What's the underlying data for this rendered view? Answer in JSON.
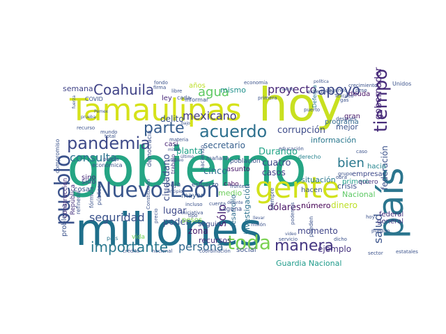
{
  "wordcloud": {
    "words": [
      {
        "text": "gobierno",
        "color": "#25a584"
      },
      {
        "text": "millones",
        "color": "#1f6f8b"
      },
      {
        "text": "hoy",
        "color": "#c8e020"
      },
      {
        "text": "país",
        "color": "#2b758e"
      },
      {
        "text": "Tamaulipas",
        "color": "#d5e21a"
      },
      {
        "text": "gente",
        "color": "#d2e21b"
      },
      {
        "text": "Nuevo León",
        "color": "#39568c"
      },
      {
        "text": "pueblo",
        "color": "#3b528b"
      },
      {
        "text": "pandemia",
        "color": "#3e4a89"
      },
      {
        "text": "Coahuila",
        "color": "#404387"
      },
      {
        "text": "acuerdo",
        "color": "#2d708e"
      },
      {
        "text": "parte",
        "color": "#365d8d"
      },
      {
        "text": "tiempo",
        "color": "#472c7a"
      },
      {
        "text": "toda",
        "color": "#7ad151"
      },
      {
        "text": "manera",
        "color": "#453781"
      },
      {
        "text": "importante",
        "color": "#2a788e"
      },
      {
        "text": "agua",
        "color": "#5ec962"
      },
      {
        "text": "apoyo",
        "color": "#3e4989"
      },
      {
        "text": "proyecto",
        "color": "#482677"
      },
      {
        "text": "seguridad",
        "color": "#3b528b"
      },
      {
        "text": "mexicano",
        "color": "#443b84"
      },
      {
        "text": "consulta",
        "color": "#2c728e"
      },
      {
        "text": "persona",
        "color": "#31688e"
      },
      {
        "text": "bien",
        "color": "#2a788e"
      },
      {
        "text": "salud",
        "color": "#3a538b"
      },
      {
        "text": "gobernador",
        "color": "#482979"
      },
      {
        "text": "sólo",
        "color": "#482173"
      },
      {
        "text": "Durango",
        "color": "#20a386"
      },
      {
        "text": "corrupción",
        "color": "#3e4c8a"
      },
      {
        "text": "federación",
        "color": "#3b528b"
      },
      {
        "text": "dólares",
        "color": "#471365"
      },
      {
        "text": "ejemplo",
        "color": "#46327e"
      },
      {
        "text": "Guardia Nacional",
        "color": "#1e9b8a"
      },
      {
        "text": "secretario",
        "color": "#355f8d"
      },
      {
        "text": "cinco",
        "color": "#2e6e8e"
      },
      {
        "text": "cuatro",
        "color": "#3e4a89"
      },
      {
        "text": "casos",
        "color": "#424086"
      },
      {
        "text": "delito",
        "color": "#3b528b"
      },
      {
        "text": "semana",
        "color": "#414487"
      },
      {
        "text": "mismo",
        "color": "#21918c"
      },
      {
        "text": "mejor",
        "color": "#3b528b"
      },
      {
        "text": "planta",
        "color": "#1fa187"
      },
      {
        "text": "ciudadano",
        "color": "#3d4e8a"
      },
      {
        "text": "lugar",
        "color": "#3e4989"
      },
      {
        "text": "poder",
        "color": "#3b528b"
      },
      {
        "text": "número",
        "color": "#440154"
      },
      {
        "text": "dinero",
        "color": "#bddf26"
      },
      {
        "text": "momento",
        "color": "#404588"
      },
      {
        "text": "información",
        "color": "#2a788e"
      },
      {
        "text": "investigación",
        "color": "#2c728e"
      },
      {
        "text": "zona",
        "color": "#481a6c"
      },
      {
        "text": "recursos",
        "color": "#472f7d"
      },
      {
        "text": "Nacional",
        "color": "#5cc863"
      },
      {
        "text": "crisis",
        "color": "#3b528b"
      },
      {
        "text": "primero",
        "color": "#1f9e89"
      },
      {
        "text": "medio",
        "color": "#6ccd5a"
      },
      {
        "text": "situación",
        "color": "#2a788e"
      },
      {
        "text": "hacen",
        "color": "#3b528b"
      },
      {
        "text": "hacia",
        "color": "#25858e"
      },
      {
        "text": "gran",
        "color": "#48186a"
      },
      {
        "text": "general",
        "color": "#443983"
      },
      {
        "text": "federal",
        "color": "#46327e"
      },
      {
        "text": "empresa",
        "color": "#3e4a89"
      },
      {
        "text": "deuda",
        "color": "#481467"
      },
      {
        "text": "años",
        "color": "#bddf26"
      },
      {
        "text": "programa",
        "color": "#31688e"
      },
      {
        "text": "social",
        "color": "#3b528b"
      },
      {
        "text": "asunto",
        "color": "#48186a"
      },
      {
        "text": "casi",
        "color": "#482475"
      },
      {
        "text": "ley",
        "color": "#482878"
      },
      {
        "text": "sino",
        "color": "#472a7a"
      },
      {
        "text": "sido",
        "color": "#414487"
      },
      {
        "text": "mayor",
        "color": "#38598c"
      },
      {
        "text": "baja",
        "color": "#3b528b"
      },
      {
        "text": "cosa",
        "color": "#3b528b"
      },
      {
        "text": "pesos",
        "color": "#7fd34e"
      },
      {
        "text": "seguir",
        "color": "#3f4889"
      },
      {
        "text": "desarrollo",
        "color": "#2f6c8e"
      },
      {
        "text": "problema",
        "color": "#3b528b"
      },
      {
        "text": "construcción",
        "color": "#472c7a"
      },
      {
        "text": "República",
        "color": "#46337f"
      },
      {
        "text": "refinería",
        "color": "#3b528b"
      },
      {
        "text": "país",
        "color": "#2b758e"
      },
      {
        "text": "vida",
        "color": "#6ece58"
      },
      {
        "text": "población",
        "color": "#3b528b"
      },
      {
        "text": "esfuerzo",
        "color": "#3b528b"
      },
      {
        "text": "cabo",
        "color": "#46085c"
      },
      {
        "text": "Laguna",
        "color": "#3e4c8a"
      },
      {
        "text": "quiero",
        "color": "#46337f"
      },
      {
        "text": "pueden",
        "color": "#3b528b"
      },
      {
        "text": "derecho",
        "color": "#26828e"
      },
      {
        "text": "COVID",
        "color": "#3b528b"
      },
      {
        "text": "cada",
        "color": "#3b528b"
      },
      {
        "text": "Defensa",
        "color": "#2a788e"
      },
      {
        "text": "fórmula",
        "color": "#3b528b"
      },
      {
        "text": "trabajo",
        "color": "#46337f"
      },
      {
        "text": "haciendo",
        "color": "#3b528b"
      },
      {
        "text": "informar",
        "color": "#3b528b"
      },
      {
        "text": "económica",
        "color": "#3b528b"
      },
      {
        "text": "mañana",
        "color": "#3b528b"
      },
      {
        "text": "compromiso",
        "color": "#3b528b"
      },
      {
        "text": "democracia",
        "color": "#3b528b"
      },
      {
        "text": "siempre",
        "color": "#3b528b"
      },
      {
        "text": "público",
        "color": "#3b528b"
      },
      {
        "text": "Unidos",
        "color": "#3b528b"
      },
      {
        "text": "economía",
        "color": "#3b528b"
      },
      {
        "text": "podemos",
        "color": "#3b528b"
      },
      {
        "text": "educación",
        "color": "#3b528b"
      },
      {
        "text": "crecimiento",
        "color": "#3b528b"
      },
      {
        "text": "peso",
        "color": "#3b528b"
      },
      {
        "text": "nacional",
        "color": "#3b528b"
      },
      {
        "text": "sector",
        "color": "#3b528b"
      },
      {
        "text": "estatales",
        "color": "#3b528b"
      },
      {
        "text": "crédito",
        "color": "#3b528b"
      },
      {
        "text": "coordinación",
        "color": "#3b528b"
      },
      {
        "text": "servicio",
        "color": "#3b528b"
      },
      {
        "text": "policía",
        "color": "#3b528b"
      },
      {
        "text": "mundo",
        "color": "#3b528b"
      },
      {
        "text": "total",
        "color": "#3b528b"
      },
      {
        "text": "recurso",
        "color": "#3b528b"
      },
      {
        "text": "fondo",
        "color": "#3b528b"
      },
      {
        "text": "firma",
        "color": "#3b528b"
      },
      {
        "text": "libre",
        "color": "#3b528b"
      },
      {
        "text": "segundo",
        "color": "#3b528b"
      },
      {
        "text": "Texcoco",
        "color": "#3b528b"
      },
      {
        "text": "gas",
        "color": "#3b528b"
      },
      {
        "text": "expediente",
        "color": "#3b528b"
      },
      {
        "text": "frontera",
        "color": "#3b528b"
      },
      {
        "text": "primera",
        "color": "#3b528b"
      },
      {
        "text": "millón",
        "color": "#3b528b"
      },
      {
        "text": "dicho",
        "color": "#3b528b"
      },
      {
        "text": "obra",
        "color": "#3b528b"
      },
      {
        "text": "después",
        "color": "#3b528b"
      },
      {
        "text": "puerto",
        "color": "#3b528b"
      },
      {
        "text": "hoy",
        "color": "#3b528b"
      },
      {
        "text": "puedan",
        "color": "#3b528b"
      },
      {
        "text": "grupo",
        "color": "#3b528b"
      },
      {
        "text": "caso",
        "color": "#3b528b"
      },
      {
        "text": "iniciativa",
        "color": "#3b528b"
      },
      {
        "text": "incluso",
        "color": "#3b528b"
      },
      {
        "text": "Constitución",
        "color": "#3b528b"
      },
      {
        "text": "materia",
        "color": "#3b528b"
      },
      {
        "text": "cuenta",
        "color": "#3b528b"
      },
      {
        "text": "precio",
        "color": "#3b528b"
      },
      {
        "text": "llevar",
        "color": "#3b528b"
      },
      {
        "text": "video",
        "color": "#3b528b"
      },
      {
        "text": "tipo",
        "color": "#3b528b"
      },
      {
        "text": "Pemex",
        "color": "#3b528b"
      },
      {
        "text": "prueba",
        "color": "#3b528b"
      },
      {
        "text": "fuerza",
        "color": "#3b528b"
      },
      {
        "text": "mitad",
        "color": "#3b528b"
      },
      {
        "text": "empleo",
        "color": "#3b528b"
      },
      {
        "text": "último",
        "color": "#3b528b"
      },
      {
        "text": "bajo",
        "color": "#3b528b"
      },
      {
        "text": "principio",
        "color": "#3b528b"
      },
      {
        "text": "cuanto",
        "color": "#3b528b"
      },
      {
        "text": "delante",
        "color": "#3b528b"
      },
      {
        "text": "política",
        "color": "#3b528b"
      },
      {
        "text": "Estados",
        "color": "#3b528b"
      }
    ]
  }
}
